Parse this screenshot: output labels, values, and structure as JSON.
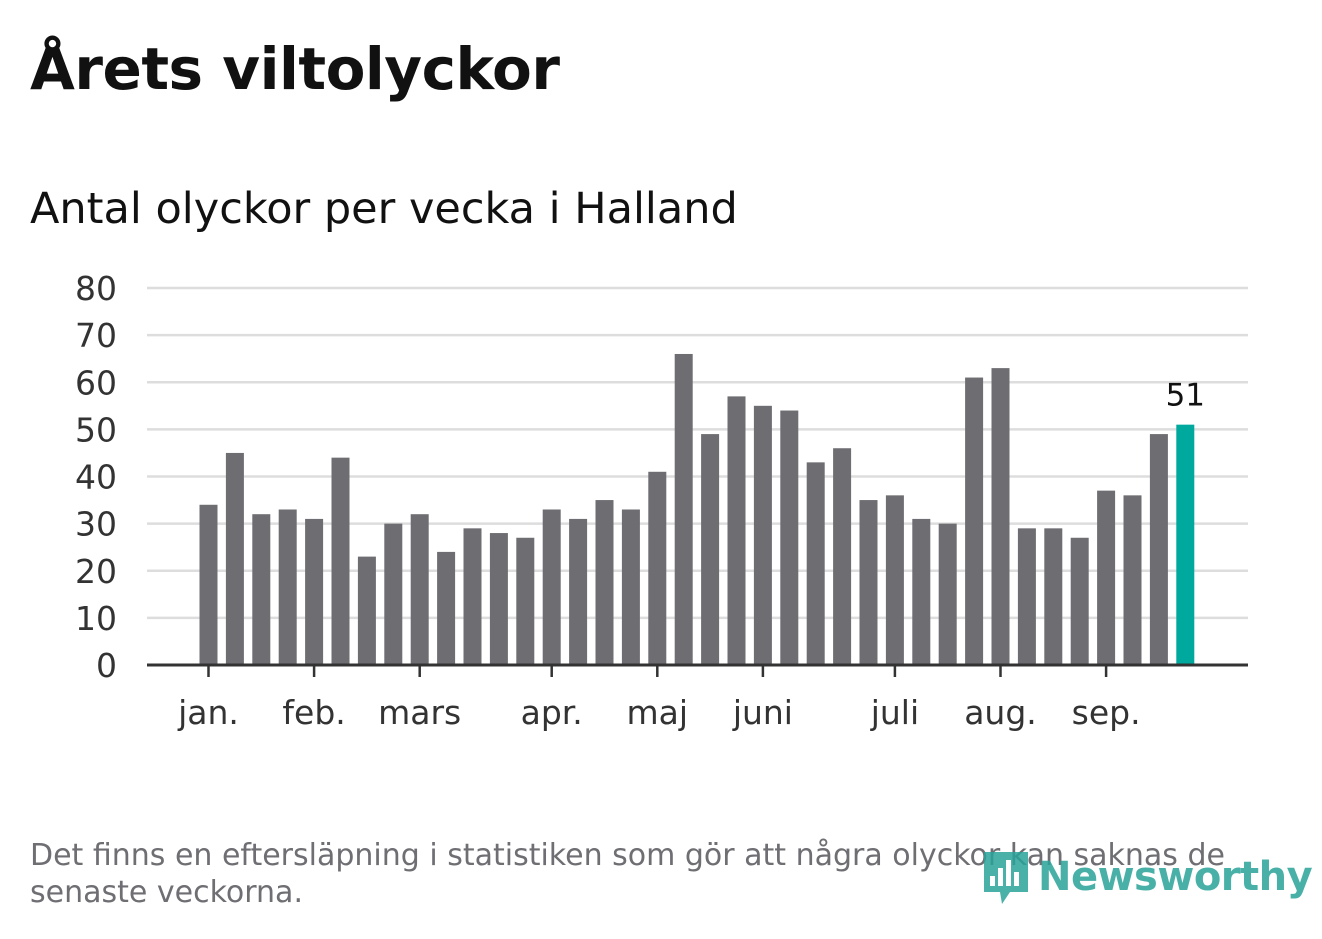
{
  "title": "Årets viltolyckor",
  "subtitle": "Antal olyckor per vecka i Halland",
  "note": "Det finns en eftersläpning i statistiken som gör att några olyckor kan saknas de senaste veckorna.",
  "brand": {
    "name": "Newsworthy",
    "icon": "newsworthy-bar-chart-logo-icon"
  },
  "colors": {
    "bar": "#6e6d72",
    "highlight": "#00a99d",
    "grid": "#dddddd",
    "axis": "#333333",
    "note": "#6e6e73",
    "brand": "#2aa39a"
  },
  "chart_data": {
    "type": "bar",
    "title": "Antal olyckor per vecka i Halland",
    "xlabel": "",
    "ylabel": "",
    "ylim": [
      0,
      80
    ],
    "yticks": [
      0,
      10,
      20,
      30,
      40,
      50,
      60,
      70,
      80
    ],
    "grid": true,
    "values": [
      34,
      45,
      32,
      33,
      31,
      44,
      23,
      30,
      32,
      24,
      29,
      28,
      27,
      33,
      31,
      35,
      33,
      41,
      66,
      49,
      57,
      55,
      54,
      43,
      46,
      35,
      36,
      31,
      30,
      61,
      63,
      29,
      29,
      27,
      37,
      36,
      49,
      51
    ],
    "highlight_index": 37,
    "highlight_label": "51",
    "month_ticks": [
      {
        "label": "jan.",
        "week": 0
      },
      {
        "label": "feb.",
        "week": 4
      },
      {
        "label": "mars",
        "week": 8
      },
      {
        "label": "apr.",
        "week": 13
      },
      {
        "label": "maj",
        "week": 17
      },
      {
        "label": "juni",
        "week": 21
      },
      {
        "label": "juli",
        "week": 26
      },
      {
        "label": "aug.",
        "week": 30
      },
      {
        "label": "sep.",
        "week": 34
      }
    ]
  }
}
